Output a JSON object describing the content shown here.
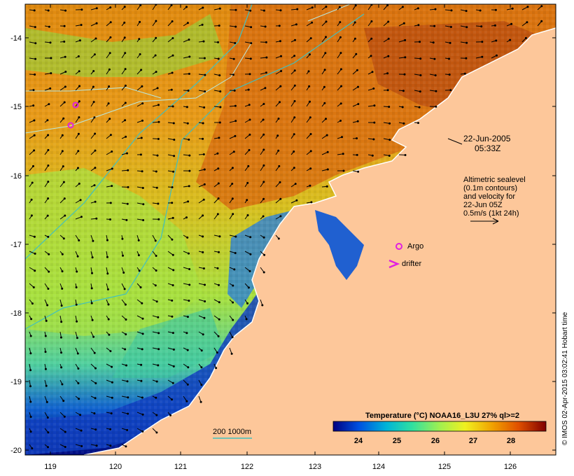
{
  "map": {
    "date_line1": "22-Jun-2005",
    "date_line2": "05:33Z",
    "legend_lines": [
      "Altimetric sealevel",
      "(0.1m contours)",
      "and velocity for",
      "22-Jun 05Z",
      "0.5m/s (1kt 24h)"
    ],
    "argo_label": "Argo",
    "drifter_label": "drifter",
    "bathy_label": "200  1000m",
    "colorbar_title": "Temperature (°C) NOAA16_L3U 27% ql>=2",
    "colorbar_ticks": [
      "24",
      "25",
      "26",
      "27",
      "28"
    ],
    "x_ticks": [
      "119",
      "120",
      "121",
      "122",
      "123",
      "124",
      "125",
      "126"
    ],
    "y_ticks": [
      "-14",
      "-15",
      "-16",
      "-17",
      "-18",
      "-19",
      "-20"
    ],
    "credit": "© IMOS 02-Apr-2015 03:02:41 Hobart time"
  },
  "colors": {
    "land": "#fdc79a",
    "argo": "#e020e0",
    "contour": "#b8e8e0",
    "bathy": "#40c0c0",
    "cb_stops": [
      "#000080",
      "#0050e0",
      "#00b4d8",
      "#30e0a0",
      "#a0f050",
      "#f0f020",
      "#f0a000",
      "#e05000",
      "#800000"
    ]
  }
}
